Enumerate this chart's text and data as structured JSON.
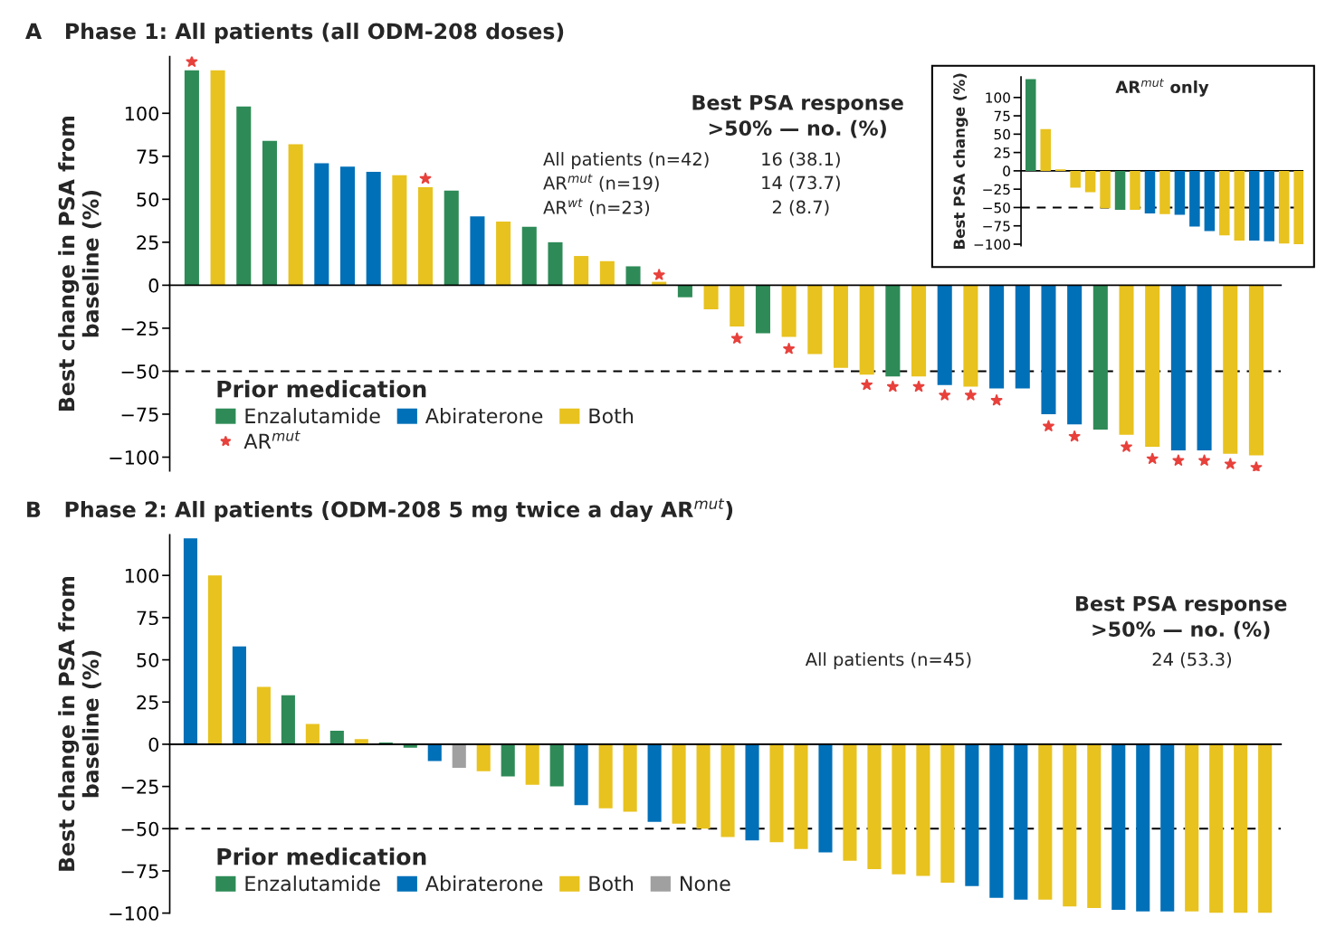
{
  "chart_data": [
    {
      "type": "bar",
      "title": "A   Phase 1: All patients (all ODM-208 doses)",
      "ylabel": "Best change in PSA from\nbaseline (%)",
      "legend_title": "Prior medication",
      "legend": "bottom left",
      "tick_labels": "y",
      "categories": [
        null,
        null,
        null,
        null,
        null,
        null,
        null,
        null,
        null,
        null,
        null,
        null,
        null,
        null,
        null,
        null,
        null,
        null,
        null,
        null,
        null,
        null,
        null,
        null,
        null,
        null,
        null,
        null,
        null,
        null,
        null,
        null,
        null,
        null,
        null,
        null,
        null,
        null,
        null,
        null,
        null,
        null
      ],
      "series": [
        {
          "name": "Enzalutamide",
          "color": "#2e8b57",
          "values": [
            125,
            null,
            104,
            84,
            null,
            null,
            null,
            null,
            null,
            null,
            55,
            null,
            null,
            34,
            25,
            null,
            null,
            11,
            null,
            -7,
            null,
            null,
            -28,
            null,
            null,
            null,
            null,
            -53,
            null,
            null,
            null,
            null,
            null,
            null,
            null,
            -84,
            null,
            null,
            null,
            null,
            null,
            null
          ]
        },
        {
          "name": "Abiraterone",
          "color": "#0070b8",
          "values": [
            null,
            null,
            null,
            null,
            null,
            71,
            69,
            66,
            null,
            null,
            null,
            40,
            null,
            null,
            null,
            null,
            null,
            null,
            null,
            null,
            null,
            null,
            null,
            null,
            null,
            null,
            null,
            null,
            null,
            -58,
            null,
            -60,
            -60,
            -75,
            -81,
            null,
            null,
            null,
            -96,
            -96,
            null,
            null
          ]
        },
        {
          "name": "Both",
          "color": "#e8c21e",
          "values": [
            null,
            125,
            null,
            null,
            82,
            null,
            null,
            null,
            64,
            57,
            null,
            null,
            37,
            null,
            null,
            17,
            14,
            null,
            2,
            null,
            -14,
            -24,
            null,
            -30,
            -40,
            -48,
            -52,
            null,
            -53,
            null,
            -59,
            null,
            null,
            null,
            null,
            null,
            -87,
            -94,
            null,
            null,
            -98,
            -99
          ]
        },
        {
          "name": "AR$^{mut}$",
          "type": "scatter",
          "marker": "star",
          "color": "#e8413c",
          "values": [
            130,
            null,
            null,
            null,
            null,
            null,
            null,
            null,
            null,
            62,
            null,
            null,
            null,
            null,
            null,
            null,
            null,
            null,
            6,
            null,
            null,
            -31,
            null,
            -37,
            null,
            null,
            -58,
            -59,
            -59,
            -64,
            -64,
            -67,
            null,
            -82,
            -88,
            null,
            -94,
            -101,
            -102,
            -102,
            -104,
            -106
          ]
        }
      ],
      "ylim": [
        -108,
        133
      ],
      "yticks": [
        {
          "value": -100,
          "label": "−100"
        },
        {
          "value": -75,
          "label": "−75"
        },
        {
          "value": -50,
          "label": "−50"
        },
        {
          "value": -25,
          "label": "−25"
        },
        0,
        25,
        50,
        75,
        100
      ],
      "ref_lines": [
        {
          "axis": "y",
          "value": -50,
          "line_style": "dashed",
          "color": "#000000"
        }
      ],
      "annotations": [
        "Best PSA response\n>50% — no. (%)",
        "All patients (n=42)",
        "16 (38.1)",
        "AR$^{mut}$ (n=19)",
        "14 (73.7)",
        "AR$^{wt}$ (n=23)",
        "2 (8.7)"
      ]
    },
    {
      "type": "bar",
      "title": "AR$^{mut}$ only",
      "ylabel": "Best PSA change (%)",
      "tick_labels": "y",
      "categories": [
        null,
        null,
        null,
        null,
        null,
        null,
        null,
        null,
        null,
        null,
        null,
        null,
        null,
        null,
        null,
        null,
        null,
        null,
        null
      ],
      "values": [
        125,
        57,
        2,
        -23,
        -29,
        -51,
        -53,
        -53,
        -58,
        -59,
        -60,
        -76,
        -82,
        -88,
        -95,
        -95,
        -96,
        -99,
        -100
      ],
      "colors": [
        "#2e8b57",
        "#e8c21e",
        "#e8c21e",
        "#e8c21e",
        "#e8c21e",
        "#e8c21e",
        "#2e8b57",
        "#e8c21e",
        "#0070b8",
        "#e8c21e",
        "#0070b8",
        "#0070b8",
        "#0070b8",
        "#e8c21e",
        "#e8c21e",
        "#0070b8",
        "#0070b8",
        "#e8c21e",
        "#e8c21e"
      ],
      "ylim": [
        -102,
        128
      ],
      "yticks": [
        {
          "value": -100,
          "label": "−100"
        },
        {
          "value": -75,
          "label": "−75"
        },
        {
          "value": -50,
          "label": "−50"
        },
        {
          "value": -25,
          "label": "−25"
        },
        0,
        25,
        50,
        75,
        100
      ],
      "ref_lines": [
        {
          "axis": "y",
          "value": -50,
          "line_style": "dashed",
          "color": "#000000"
        },
        {
          "axis": "y",
          "value": 0,
          "line_style": "solid",
          "color": "#000000"
        }
      ]
    },
    {
      "type": "bar",
      "title": "B   Phase 2: All patients (ODM-208 5 mg twice a day AR$^{mut}$)",
      "ylabel": "Best change in PSA from\nbaseline (%)",
      "legend_title": "Prior medication",
      "legend": "bottom left",
      "tick_labels": "y",
      "categories": [
        null,
        null,
        null,
        null,
        null,
        null,
        null,
        null,
        null,
        null,
        null,
        null,
        null,
        null,
        null,
        null,
        null,
        null,
        null,
        null,
        null,
        null,
        null,
        null,
        null,
        null,
        null,
        null,
        null,
        null,
        null,
        null,
        null,
        null,
        null,
        null,
        null,
        null,
        null,
        null,
        null,
        null,
        null,
        null,
        null
      ],
      "series": [
        {
          "name": "Enzalutamide",
          "color": "#2e8b57",
          "values": [
            null,
            null,
            null,
            null,
            29,
            null,
            8,
            null,
            1,
            -2,
            null,
            null,
            null,
            -19,
            null,
            -25,
            null,
            null,
            null,
            null,
            null,
            null,
            null,
            null,
            null,
            null,
            null,
            null,
            null,
            null,
            null,
            null,
            null,
            null,
            null,
            null,
            null,
            null,
            null,
            null,
            null,
            null,
            null,
            null,
            null
          ]
        },
        {
          "name": "Abiraterone",
          "color": "#0070b8",
          "values": [
            122,
            null,
            58,
            null,
            null,
            null,
            null,
            null,
            null,
            null,
            -10,
            null,
            null,
            null,
            null,
            null,
            -36,
            null,
            null,
            -46,
            null,
            null,
            null,
            -57,
            null,
            null,
            -64,
            null,
            null,
            null,
            null,
            null,
            -84,
            -91,
            -92,
            null,
            null,
            null,
            -98,
            -99,
            -99,
            null,
            null,
            null,
            null
          ]
        },
        {
          "name": "Both",
          "color": "#e8c21e",
          "values": [
            null,
            100,
            null,
            34,
            null,
            12,
            null,
            3,
            null,
            null,
            null,
            null,
            -16,
            null,
            -24,
            null,
            null,
            -38,
            -40,
            null,
            -47,
            -50,
            -55,
            null,
            -58,
            -62,
            null,
            -69,
            -74,
            -77,
            -78,
            -82,
            null,
            null,
            null,
            -92,
            -96,
            -97,
            null,
            null,
            null,
            -99,
            -100,
            -100,
            -100
          ]
        },
        {
          "name": "None",
          "color": "#a0a0a0",
          "values": [
            null,
            null,
            null,
            null,
            null,
            null,
            null,
            null,
            null,
            null,
            null,
            -14,
            null,
            null,
            null,
            null,
            null,
            null,
            null,
            null,
            null,
            null,
            null,
            null,
            null,
            null,
            null,
            null,
            null,
            null,
            null,
            null,
            null,
            null,
            null,
            null,
            null,
            null,
            null,
            null,
            null,
            null,
            null,
            null,
            null
          ]
        }
      ],
      "ylim": [
        -100,
        124
      ],
      "yticks": [
        {
          "value": -100,
          "label": "−100"
        },
        {
          "value": -75,
          "label": "−75"
        },
        {
          "value": -50,
          "label": "−50"
        },
        {
          "value": -25,
          "label": "−25"
        },
        0,
        25,
        50,
        75,
        100
      ],
      "ref_lines": [
        {
          "axis": "y",
          "value": -50,
          "line_style": "dashed",
          "color": "#000000"
        }
      ],
      "annotations": [
        "Best PSA response\n>50% — no. (%)",
        "All patients (n=45)",
        "24 (53.3)"
      ]
    }
  ]
}
